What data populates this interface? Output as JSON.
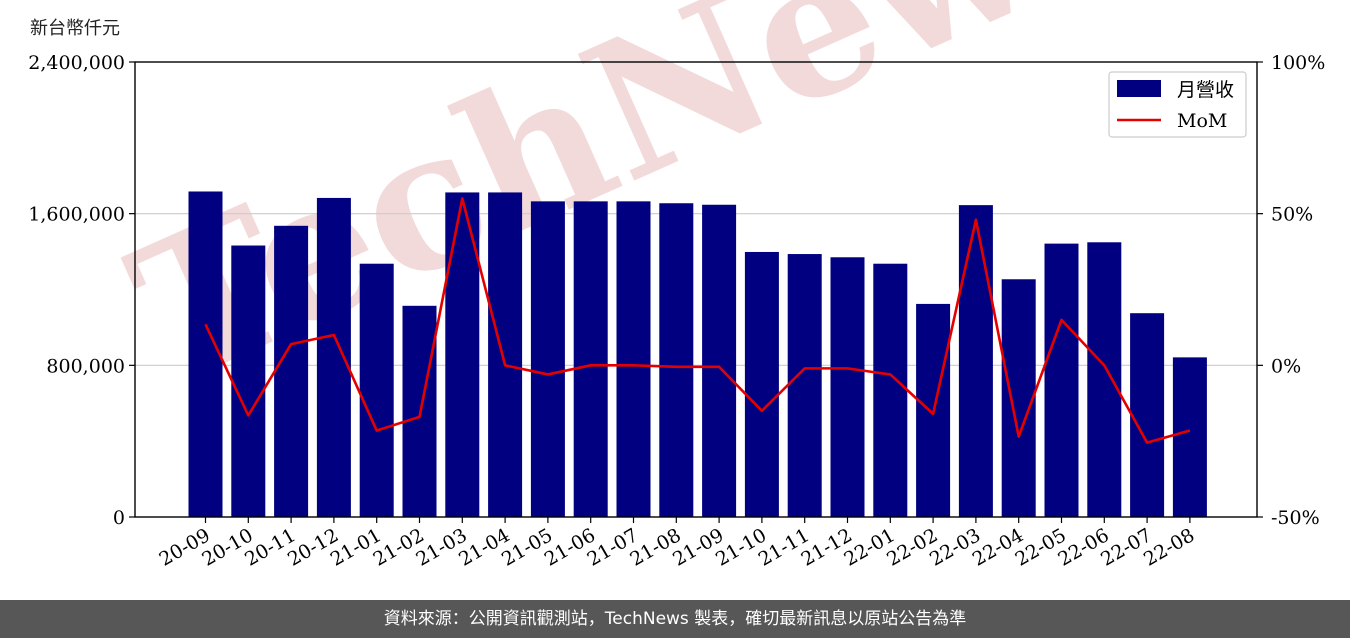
{
  "unit_label": "新台幣仟元",
  "footer_text": "資料來源：公開資訊觀測站，TechNews 製表，確切最新訊息以原站公告為準",
  "watermark_text": "TechNews",
  "colors": {
    "bar": "#000080",
    "line": "#e50000",
    "grid": "#cccccc",
    "footer_bg": "#575757",
    "watermark": "#f3dada"
  },
  "chart_data": {
    "type": "bar",
    "categories": [
      "20-09",
      "20-10",
      "20-11",
      "20-12",
      "21-01",
      "21-02",
      "21-03",
      "21-04",
      "21-05",
      "21-06",
      "21-07",
      "21-08",
      "21-09",
      "21-10",
      "21-11",
      "21-12",
      "22-01",
      "22-02",
      "22-03",
      "22-04",
      "22-05",
      "22-06",
      "22-07",
      "22-08"
    ],
    "series": [
      {
        "name": "月營收",
        "type": "bar",
        "axis": "left",
        "values": [
          1717000,
          1432000,
          1536000,
          1683000,
          1336000,
          1114000,
          1712000,
          1712000,
          1665000,
          1665000,
          1665000,
          1655000,
          1647000,
          1398000,
          1387000,
          1370000,
          1336000,
          1124000,
          1645000,
          1254000,
          1442000,
          1449000,
          1075000,
          842000
        ]
      },
      {
        "name": "MoM",
        "type": "line",
        "axis": "right",
        "values": [
          13.5,
          -16.5,
          7.0,
          10.0,
          -21.5,
          -17.0,
          55.0,
          0.0,
          -3.0,
          0.0,
          0.0,
          -0.5,
          -0.5,
          -15.0,
          -1.0,
          -1.0,
          -3.0,
          -16.0,
          48.0,
          -23.5,
          15.0,
          0.0,
          -25.5,
          -21.5
        ]
      }
    ],
    "y_left": {
      "min": 0,
      "max": 2400000,
      "ticks": [
        0,
        800000,
        1600000,
        2400000
      ],
      "tick_labels": [
        "0",
        "800,000",
        "1,600,000",
        "2,400,000"
      ]
    },
    "y_right": {
      "min": -50,
      "max": 100,
      "ticks": [
        -50,
        0,
        50,
        100
      ],
      "tick_labels": [
        "-50%",
        "0%",
        "50%",
        "100%"
      ]
    },
    "grid": true,
    "legend_position": "top-right",
    "legend": [
      {
        "label": "月營收",
        "kind": "bar"
      },
      {
        "label": "MoM",
        "kind": "line"
      }
    ]
  }
}
